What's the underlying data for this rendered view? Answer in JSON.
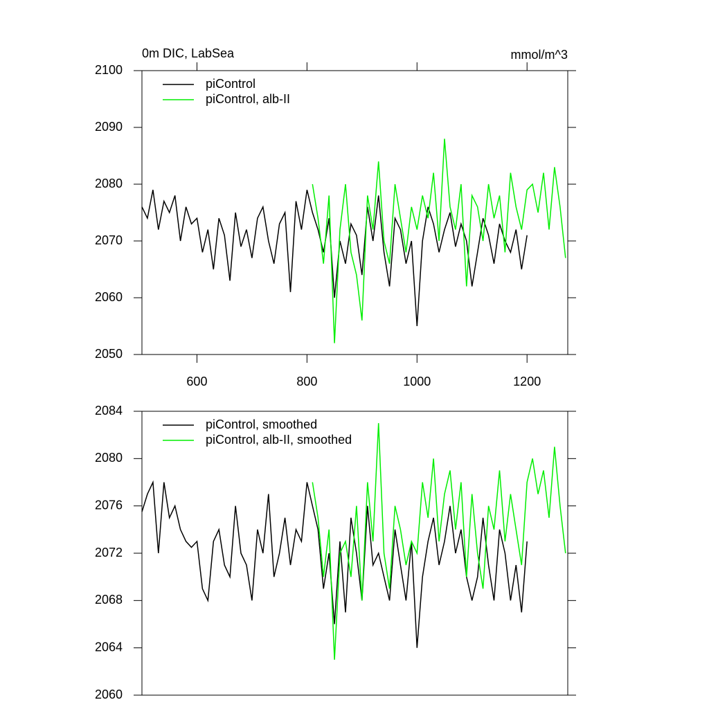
{
  "chart_data": [
    {
      "type": "line",
      "title": "0m DIC, LabSea",
      "subtitle": "mmol/m^3",
      "xlim": [
        500,
        1274
      ],
      "xticks": [
        600,
        800,
        1000,
        1200
      ],
      "ylim": [
        2050,
        2100
      ],
      "yticks": [
        2050,
        2060,
        2070,
        2080,
        2090,
        2100
      ],
      "series": [
        {
          "name": "piControl",
          "color": "#000000",
          "x": [
            500,
            510,
            520,
            530,
            540,
            550,
            560,
            570,
            580,
            590,
            600,
            610,
            620,
            630,
            640,
            650,
            660,
            670,
            680,
            690,
            700,
            710,
            720,
            730,
            740,
            750,
            760,
            770,
            780,
            790,
            800,
            810,
            820,
            830,
            840,
            850,
            860,
            870,
            880,
            890,
            900,
            910,
            920,
            930,
            940,
            950,
            960,
            970,
            980,
            990,
            1000,
            1010,
            1020,
            1030,
            1040,
            1050,
            1060,
            1070,
            1080,
            1090,
            1100,
            1110,
            1120,
            1130,
            1140,
            1150,
            1160,
            1170,
            1180,
            1190,
            1200
          ],
          "values": [
            2076,
            2074,
            2079,
            2072,
            2077,
            2075,
            2078,
            2070,
            2076,
            2073,
            2074,
            2068,
            2072,
            2065,
            2074,
            2071,
            2063,
            2075,
            2069,
            2072,
            2067,
            2074,
            2076,
            2070,
            2066,
            2073,
            2075,
            2061,
            2077,
            2072,
            2079,
            2075,
            2072,
            2068,
            2074,
            2060,
            2070,
            2066,
            2073,
            2071,
            2064,
            2076,
            2070,
            2078,
            2068,
            2062,
            2074,
            2072,
            2066,
            2070,
            2055,
            2070,
            2076,
            2073,
            2068,
            2072,
            2075,
            2069,
            2073,
            2070,
            2062,
            2068,
            2074,
            2071,
            2066,
            2073,
            2070,
            2068,
            2072,
            2065,
            2071
          ]
        },
        {
          "name": "piControl, alb-II",
          "color": "#00ee00",
          "x": [
            810,
            820,
            830,
            840,
            850,
            860,
            870,
            880,
            890,
            900,
            910,
            920,
            930,
            940,
            950,
            960,
            970,
            980,
            990,
            1000,
            1010,
            1020,
            1030,
            1040,
            1050,
            1060,
            1070,
            1080,
            1090,
            1100,
            1110,
            1120,
            1130,
            1140,
            1150,
            1160,
            1170,
            1180,
            1190,
            1200,
            1210,
            1220,
            1230,
            1240,
            1250,
            1260,
            1270
          ],
          "values": [
            2080,
            2074,
            2066,
            2078,
            2052,
            2072,
            2080,
            2068,
            2064,
            2056,
            2078,
            2072,
            2084,
            2070,
            2066,
            2080,
            2074,
            2068,
            2076,
            2072,
            2078,
            2074,
            2082,
            2070,
            2088,
            2076,
            2072,
            2080,
            2062,
            2078,
            2076,
            2070,
            2080,
            2074,
            2078,
            2068,
            2082,
            2076,
            2072,
            2079,
            2080,
            2075,
            2082,
            2072,
            2083,
            2076,
            2067
          ]
        }
      ]
    },
    {
      "type": "line",
      "xlim": [
        500,
        1274
      ],
      "ylim": [
        2060,
        2084
      ],
      "yticks": [
        2060,
        2064,
        2068,
        2072,
        2076,
        2080,
        2084
      ],
      "series": [
        {
          "name": "piControl, smoothed",
          "color": "#000000",
          "x": [
            500,
            510,
            520,
            530,
            540,
            550,
            560,
            570,
            580,
            590,
            600,
            610,
            620,
            630,
            640,
            650,
            660,
            670,
            680,
            690,
            700,
            710,
            720,
            730,
            740,
            750,
            760,
            770,
            780,
            790,
            800,
            810,
            820,
            830,
            840,
            850,
            860,
            870,
            880,
            890,
            900,
            910,
            920,
            930,
            940,
            950,
            960,
            970,
            980,
            990,
            1000,
            1010,
            1020,
            1030,
            1040,
            1050,
            1060,
            1070,
            1080,
            1090,
            1100,
            1110,
            1120,
            1130,
            1140,
            1150,
            1160,
            1170,
            1180,
            1190,
            1200
          ],
          "values": [
            2075.5,
            2077,
            2078,
            2072,
            2078,
            2075,
            2076,
            2074,
            2073,
            2072.5,
            2073,
            2069,
            2068,
            2073,
            2074,
            2071,
            2070,
            2076,
            2072,
            2071,
            2068,
            2074,
            2072,
            2077,
            2070,
            2072,
            2075,
            2071,
            2074,
            2073,
            2078,
            2076,
            2074,
            2069,
            2072,
            2066,
            2073,
            2067,
            2075,
            2072,
            2068,
            2076,
            2071,
            2072,
            2070,
            2068,
            2074,
            2071,
            2068,
            2073,
            2064,
            2070,
            2073,
            2075,
            2071,
            2073,
            2076,
            2072,
            2074,
            2070,
            2068,
            2070,
            2075,
            2071,
            2068,
            2074,
            2072,
            2068,
            2071,
            2067,
            2073
          ]
        },
        {
          "name": "piControl, alb-II, smoothed",
          "color": "#00ee00",
          "x": [
            810,
            820,
            830,
            840,
            850,
            860,
            870,
            880,
            890,
            900,
            910,
            920,
            930,
            940,
            950,
            960,
            970,
            980,
            990,
            1000,
            1010,
            1020,
            1030,
            1040,
            1050,
            1060,
            1070,
            1080,
            1090,
            1100,
            1110,
            1120,
            1130,
            1140,
            1150,
            1160,
            1170,
            1180,
            1190,
            1200,
            1210,
            1220,
            1230,
            1240,
            1250,
            1260,
            1270
          ],
          "values": [
            2078,
            2075,
            2070,
            2074,
            2063,
            2072,
            2073,
            2070,
            2076,
            2068,
            2078,
            2073,
            2083,
            2072,
            2069,
            2076,
            2074,
            2071,
            2073,
            2072,
            2078,
            2075,
            2080,
            2073,
            2077,
            2079,
            2074,
            2078,
            2070,
            2077,
            2072,
            2069,
            2076,
            2074,
            2079,
            2073,
            2077,
            2074,
            2071,
            2078,
            2080,
            2077,
            2079,
            2075,
            2081,
            2076,
            2072
          ]
        }
      ]
    }
  ]
}
